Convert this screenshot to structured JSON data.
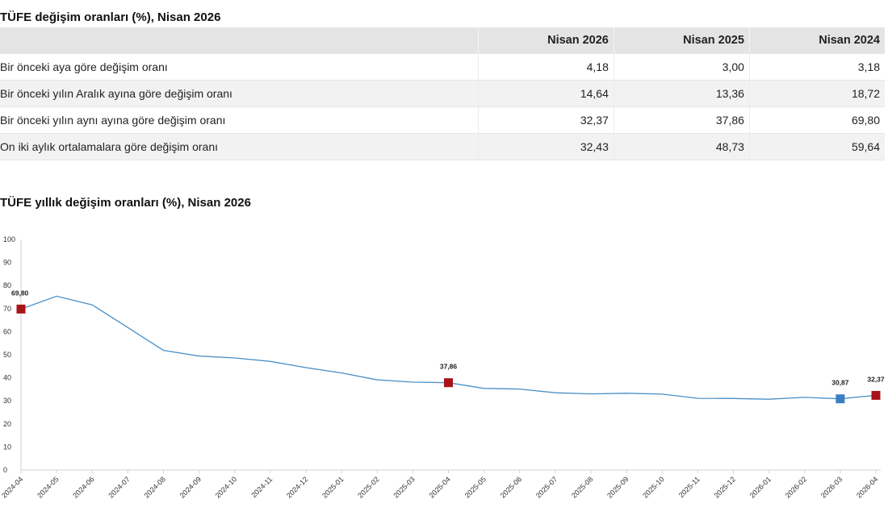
{
  "table": {
    "title": "TÜFE değişim oranları (%), Nisan 2026",
    "headers": [
      "",
      "Nisan 2026",
      "Nisan 2025",
      "Nisan 2024"
    ],
    "rows": [
      {
        "label": "Bir önceki aya göre değişim oranı",
        "values": [
          "4,18",
          "3,00",
          "3,18"
        ]
      },
      {
        "label": "Bir önceki yılın Aralık ayına göre değişim oranı",
        "values": [
          "14,64",
          "13,36",
          "18,72"
        ]
      },
      {
        "label": "Bir önceki yılın aynı ayına göre değişim oranı",
        "values": [
          "32,37",
          "37,86",
          "69,80"
        ]
      },
      {
        "label": "On iki aylık ortalamalara göre değişim oranı",
        "values": [
          "32,43",
          "48,73",
          "59,64"
        ]
      }
    ]
  },
  "chart_title": "TÜFE yıllık değişim oranları (%), Nisan 2026",
  "chart_data": {
    "type": "line",
    "x": [
      "2024-04",
      "2024-05",
      "2024-06",
      "2024-07",
      "2024-08",
      "2024-09",
      "2024-10",
      "2024-11",
      "2024-12",
      "2025-01",
      "2025-02",
      "2025-03",
      "2025-04",
      "2025-05",
      "2025-06",
      "2025-07",
      "2025-08",
      "2025-09",
      "2025-10",
      "2025-11",
      "2025-12",
      "2026-01",
      "2026-02",
      "2026-03",
      "2026-04"
    ],
    "series": [
      {
        "values": [
          69.8,
          75.4,
          71.6,
          61.8,
          51.9,
          49.4,
          48.6,
          47.1,
          44.4,
          42.1,
          39.1,
          38.1,
          37.86,
          35.4,
          35.1,
          33.5,
          33.0,
          33.3,
          32.9,
          31.1,
          31.0,
          30.7,
          31.5,
          30.87,
          32.37
        ]
      }
    ],
    "ylim": [
      0,
      100
    ],
    "yticks": [
      0,
      10,
      20,
      30,
      40,
      50,
      60,
      70,
      80,
      90,
      100
    ],
    "grid": false,
    "line_color": "#4a90c8",
    "markers": [
      {
        "x": "2024-04",
        "label": "69,80",
        "color": "#a8131a"
      },
      {
        "x": "2025-04",
        "label": "37,86",
        "color": "#a8131a"
      },
      {
        "x": "2026-03",
        "label": "30,87",
        "color": "#3a7fc1"
      },
      {
        "x": "2026-04",
        "label": "32,37",
        "color": "#a8131a"
      }
    ]
  }
}
